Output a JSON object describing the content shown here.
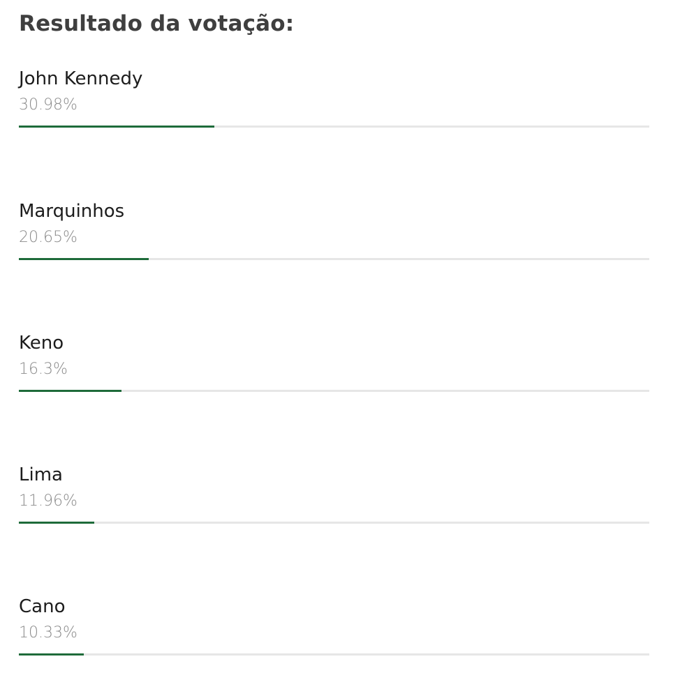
{
  "poll": {
    "title": "Resultado da votação:",
    "bar_color": "#1e6b3a",
    "track_color": "#e6e6e6",
    "results": [
      {
        "name": "John Kennedy",
        "percent_label": "30.98%",
        "percent": 30.98
      },
      {
        "name": "Marquinhos",
        "percent_label": "20.65%",
        "percent": 20.65
      },
      {
        "name": "Keno",
        "percent_label": "16.3%",
        "percent": 16.3
      },
      {
        "name": "Lima",
        "percent_label": "11.96%",
        "percent": 11.96
      },
      {
        "name": "Cano",
        "percent_label": "10.33%",
        "percent": 10.33
      }
    ]
  }
}
